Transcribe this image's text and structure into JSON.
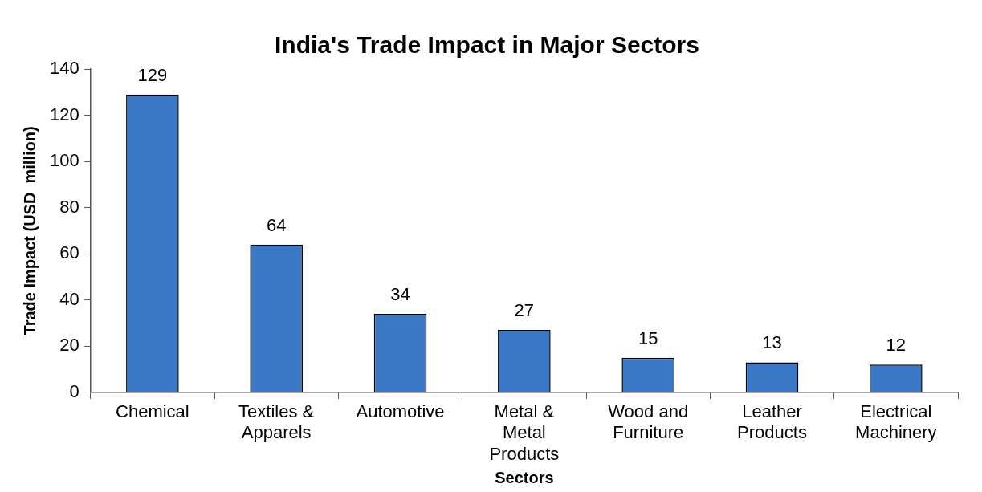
{
  "chart_data": {
    "type": "bar",
    "title": "India's Trade Impact in Major Sectors",
    "xlabel": "Sectors",
    "ylabel": "Trade Impact (USD  million)",
    "categories": [
      "Chemical",
      "Textiles & Apparels",
      "Automotive",
      "Metal & Metal Products",
      "Wood and Furniture",
      "Leather Products",
      "Electrical Machinery"
    ],
    "values": [
      129,
      64,
      34,
      27,
      15,
      13,
      12
    ],
    "color": "#3a78c6",
    "ylim": [
      0,
      140
    ],
    "yticks": [
      0,
      20,
      40,
      60,
      80,
      100,
      120,
      140
    ],
    "grid": false,
    "data_labels": true,
    "legend": false
  }
}
